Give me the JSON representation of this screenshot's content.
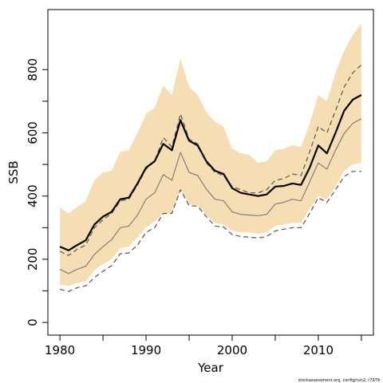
{
  "chart_data": {
    "type": "area",
    "xlabel": "Year",
    "ylabel": "SSB",
    "xlim": [
      1978.5,
      1975.5
    ],
    "ylim": [
      -40,
      990
    ],
    "x_ticks": [
      1980,
      1990,
      2000,
      2010
    ],
    "y_ticks": [
      0,
      200,
      400,
      600,
      800
    ],
    "credit": "stockassessment.org, config/run2, r7979",
    "x": [
      1980,
      1981,
      1982,
      1983,
      1984,
      1985,
      1986,
      1987,
      1988,
      1989,
      1990,
      1991,
      1992,
      1993,
      1994,
      1995,
      1996,
      1997,
      1998,
      1999,
      2000,
      2001,
      2002,
      2003,
      2004,
      2005,
      2006,
      2007,
      2008,
      2009,
      2010,
      2011,
      2012,
      2013,
      2014,
      2015
    ],
    "series": [
      {
        "role": "band",
        "color": "#f5deb3",
        "lower": [
          120,
          115,
          125,
          130,
          165,
          185,
          200,
          235,
          240,
          270,
          300,
          320,
          345,
          345,
          420,
          375,
          370,
          340,
          315,
          310,
          290,
          285,
          285,
          280,
          285,
          305,
          310,
          315,
          315,
          360,
          400,
          390,
          430,
          480,
          500,
          505
        ],
        "upper": [
          365,
          345,
          365,
          385,
          450,
          475,
          480,
          540,
          545,
          600,
          660,
          680,
          750,
          720,
          835,
          745,
          720,
          665,
          635,
          620,
          550,
          535,
          530,
          505,
          510,
          545,
          550,
          560,
          555,
          630,
          720,
          700,
          790,
          860,
          910,
          945
        ]
      },
      {
        "role": "estimate",
        "style": "solid",
        "color": "#000000",
        "width": 2.2,
        "values": [
          240,
          228,
          245,
          260,
          310,
          335,
          350,
          390,
          395,
          440,
          490,
          510,
          565,
          545,
          640,
          575,
          560,
          510,
          480,
          470,
          425,
          410,
          405,
          400,
          405,
          430,
          432,
          440,
          435,
          490,
          560,
          535,
          600,
          670,
          705,
          720
        ]
      },
      {
        "role": "dashed-upper",
        "style": "dashed",
        "color": "#555555",
        "width": 1.2,
        "values": [
          225,
          212,
          232,
          245,
          300,
          325,
          345,
          385,
          390,
          435,
          485,
          510,
          585,
          555,
          660,
          580,
          565,
          505,
          475,
          465,
          430,
          420,
          410,
          410,
          420,
          450,
          455,
          470,
          465,
          540,
          620,
          600,
          670,
          745,
          790,
          815
        ]
      },
      {
        "role": "median",
        "style": "solid",
        "color": "#808080",
        "width": 1.2,
        "values": [
          168,
          155,
          168,
          178,
          215,
          240,
          262,
          300,
          305,
          340,
          390,
          410,
          468,
          450,
          538,
          475,
          465,
          422,
          390,
          385,
          350,
          342,
          340,
          338,
          342,
          375,
          380,
          390,
          385,
          445,
          505,
          485,
          545,
          598,
          630,
          645
        ]
      },
      {
        "role": "dashed-lower",
        "style": "dashed",
        "color": "#555555",
        "width": 1.2,
        "values": [
          105,
          98,
          110,
          116,
          142,
          162,
          180,
          218,
          220,
          245,
          285,
          300,
          345,
          345,
          420,
          370,
          368,
          335,
          305,
          302,
          278,
          272,
          270,
          267,
          272,
          290,
          295,
          300,
          300,
          345,
          395,
          380,
          420,
          462,
          478,
          478
        ]
      }
    ]
  }
}
